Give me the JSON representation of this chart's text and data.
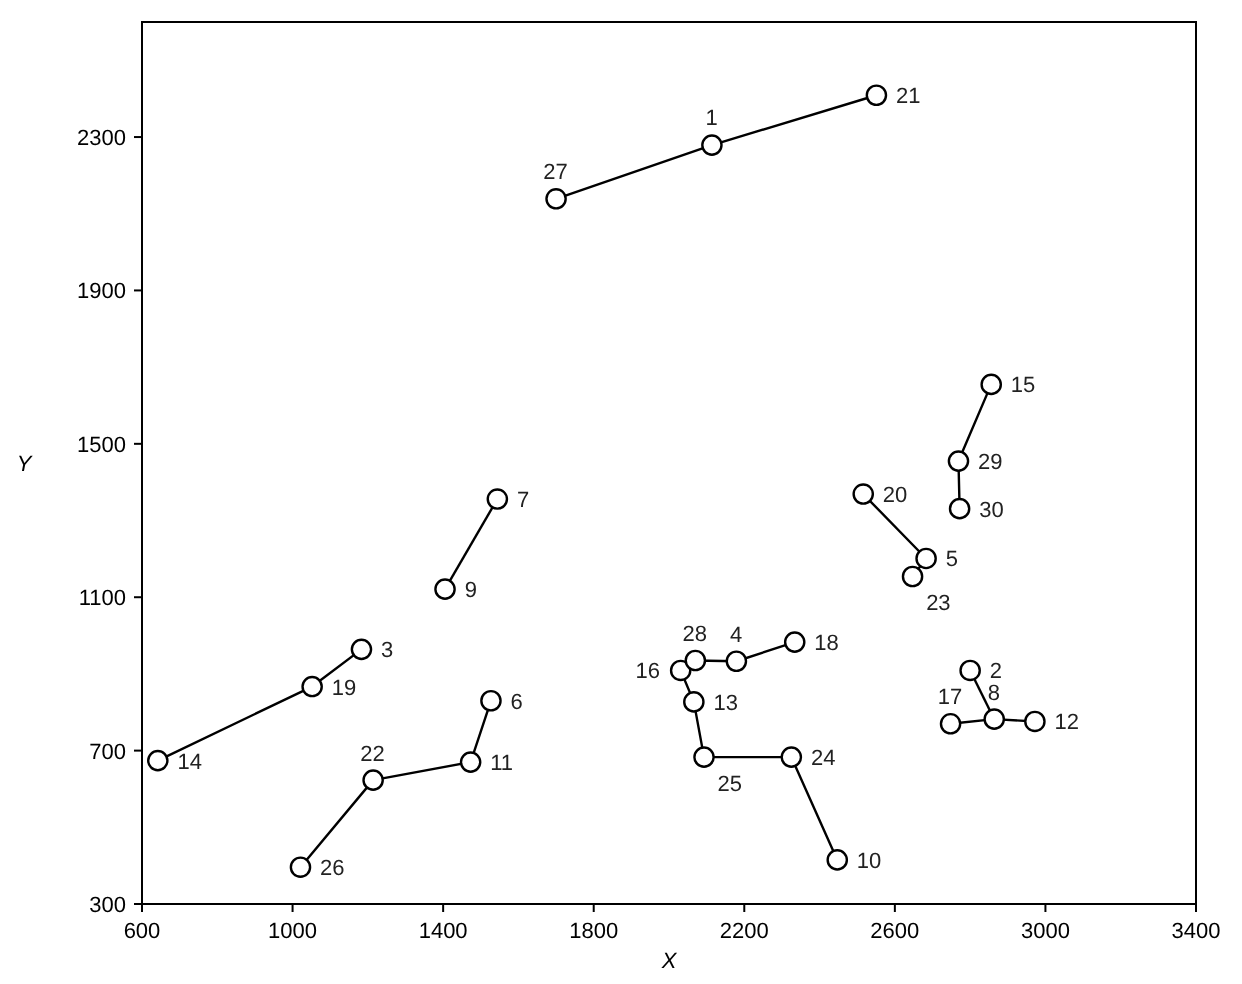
{
  "chart_data": {
    "type": "scatter",
    "xlabel": "X",
    "ylabel": "Y",
    "xlim": [
      600,
      3400
    ],
    "xticks": [
      600,
      1000,
      1400,
      1800,
      2200,
      2600,
      3000,
      3400
    ],
    "ylim": [
      300,
      2600
    ],
    "yticks": [
      300,
      700,
      1100,
      1500,
      1900,
      2300
    ],
    "grid": false,
    "series": [
      {
        "type": "line",
        "color": "#000000",
        "marker": "none",
        "x": [
          1700,
          2114,
          2551
        ],
        "values": [
          2139,
          2279,
          2409
        ]
      },
      {
        "type": "line",
        "color": "#000000",
        "marker": "none",
        "x": [
          1544,
          1405
        ],
        "values": [
          1356,
          1121
        ]
      },
      {
        "type": "line",
        "color": "#000000",
        "marker": "none",
        "x": [
          642,
          1052,
          1183
        ],
        "values": [
          674,
          867,
          964
        ]
      },
      {
        "type": "line",
        "color": "#000000",
        "marker": "none",
        "x": [
          1021,
          1214,
          1473,
          1527
        ],
        "values": [
          396,
          623,
          670,
          830
        ]
      },
      {
        "type": "line",
        "color": "#000000",
        "marker": "none",
        "x": [
          2856,
          2769,
          2772
        ],
        "values": [
          1655,
          1455,
          1331
        ]
      },
      {
        "type": "line",
        "color": "#000000",
        "marker": "none",
        "x": [
          2516,
          2683,
          2647
        ],
        "values": [
          1369,
          1201,
          1154
        ]
      },
      {
        "type": "line",
        "color": "#000000",
        "marker": "none",
        "x": [
          2334,
          2179,
          2070,
          2031,
          2066,
          2093,
          2325,
          2447
        ],
        "values": [
          983,
          933,
          935,
          909,
          827,
          683,
          683,
          415
        ]
      },
      {
        "type": "line",
        "color": "#000000",
        "marker": "none",
        "x": [
          2800,
          2864
        ],
        "values": [
          909,
          782
        ]
      },
      {
        "type": "line",
        "color": "#000000",
        "marker": "none",
        "x": [
          2748,
          2864,
          2972
        ],
        "values": [
          770,
          782,
          776
        ]
      },
      {
        "color": "#000000",
        "marker": "circle",
        "x": [
          2114,
          2800,
          1183,
          2179,
          2683,
          1527,
          1544,
          2864,
          1405,
          2447,
          1473,
          2972,
          2066,
          642,
          2856,
          2031,
          2748,
          2334,
          1052,
          2516,
          2551,
          1214,
          2647,
          2325,
          2093,
          1021,
          1700,
          2070,
          2769,
          2772
        ],
        "values": [
          2279,
          909,
          964,
          933,
          1201,
          830,
          1356,
          782,
          1121,
          415,
          670,
          776,
          827,
          674,
          1655,
          909,
          770,
          983,
          867,
          1369,
          2409,
          623,
          1154,
          683,
          683,
          396,
          2139,
          935,
          1455,
          1331
        ]
      }
    ],
    "annotations": [
      {
        "text": "1",
        "x": 2114,
        "y": 2279
      },
      {
        "text": "2",
        "x": 2800,
        "y": 909
      },
      {
        "text": "3",
        "x": 1183,
        "y": 964
      },
      {
        "text": "4",
        "x": 2179,
        "y": 933
      },
      {
        "text": "5",
        "x": 2683,
        "y": 1201
      },
      {
        "text": "6",
        "x": 1527,
        "y": 830
      },
      {
        "text": "7",
        "x": 1544,
        "y": 1356
      },
      {
        "text": "8",
        "x": 2864,
        "y": 782
      },
      {
        "text": "9",
        "x": 1405,
        "y": 1121
      },
      {
        "text": "10",
        "x": 2447,
        "y": 415
      },
      {
        "text": "11",
        "x": 1473,
        "y": 670
      },
      {
        "text": "12",
        "x": 2972,
        "y": 776
      },
      {
        "text": "13",
        "x": 2066,
        "y": 827
      },
      {
        "text": "14",
        "x": 642,
        "y": 674
      },
      {
        "text": "15",
        "x": 2856,
        "y": 1655
      },
      {
        "text": "16",
        "x": 2031,
        "y": 909
      },
      {
        "text": "17",
        "x": 2748,
        "y": 770
      },
      {
        "text": "18",
        "x": 2334,
        "y": 983
      },
      {
        "text": "19",
        "x": 1052,
        "y": 867
      },
      {
        "text": "20",
        "x": 2516,
        "y": 1369
      },
      {
        "text": "21",
        "x": 2551,
        "y": 2409
      },
      {
        "text": "22",
        "x": 1214,
        "y": 623
      },
      {
        "text": "23",
        "x": 2647,
        "y": 1154
      },
      {
        "text": "24",
        "x": 2325,
        "y": 683
      },
      {
        "text": "25",
        "x": 2093,
        "y": 683
      },
      {
        "text": "26",
        "x": 1021,
        "y": 396
      },
      {
        "text": "27",
        "x": 1700,
        "y": 2139
      },
      {
        "text": "28",
        "x": 2070,
        "y": 935
      },
      {
        "text": "29",
        "x": 2769,
        "y": 1455
      },
      {
        "text": "30",
        "x": 2772,
        "y": 1331
      }
    ]
  }
}
